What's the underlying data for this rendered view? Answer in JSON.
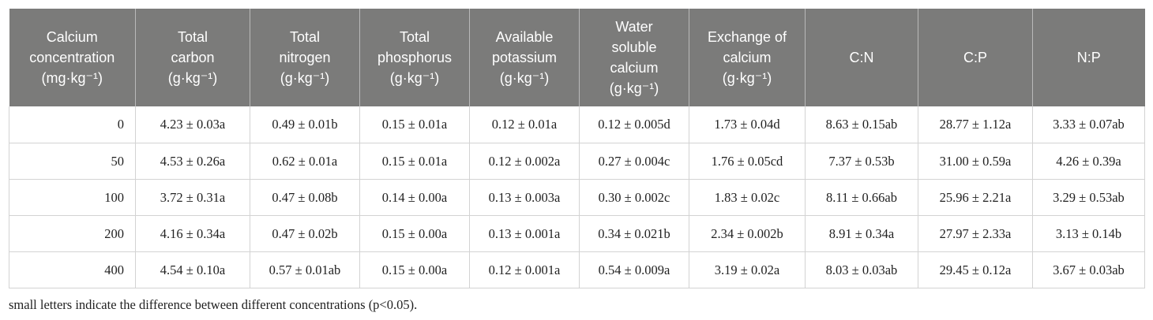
{
  "table": {
    "headers": [
      [
        "Calcium",
        "concentration",
        "(mg·kg⁻¹)"
      ],
      [
        "Total",
        "carbon",
        "(g·kg⁻¹)"
      ],
      [
        "Total",
        "nitrogen",
        "(g·kg⁻¹)"
      ],
      [
        "Total",
        "phosphorus",
        "(g·kg⁻¹)"
      ],
      [
        "Available",
        "potassium",
        "(g·kg⁻¹)"
      ],
      [
        "Water",
        "soluble",
        "calcium",
        "(g·kg⁻¹)"
      ],
      [
        "Exchange of",
        "calcium",
        "(g·kg⁻¹)"
      ],
      [
        "C:N"
      ],
      [
        "C:P"
      ],
      [
        "N:P"
      ]
    ],
    "rows": [
      [
        "0",
        "4.23 ± 0.03a",
        "0.49 ± 0.01b",
        "0.15 ± 0.01a",
        "0.12 ± 0.01a",
        "0.12 ± 0.005d",
        "1.73 ± 0.04d",
        "8.63 ± 0.15ab",
        "28.77 ± 1.12a",
        "3.33 ± 0.07ab"
      ],
      [
        "50",
        "4.53 ± 0.26a",
        "0.62 ± 0.01a",
        "0.15 ± 0.01a",
        "0.12 ± 0.002a",
        "0.27 ± 0.004c",
        "1.76 ± 0.05cd",
        "7.37 ± 0.53b",
        "31.00 ± 0.59a",
        "4.26 ± 0.39a"
      ],
      [
        "100",
        "3.72 ± 0.31a",
        "0.47 ± 0.08b",
        "0.14 ± 0.00a",
        "0.13 ± 0.003a",
        "0.30 ± 0.002c",
        "1.83 ± 0.02c",
        "8.11 ± 0.66ab",
        "25.96 ± 2.21a",
        "3.29 ± 0.53ab"
      ],
      [
        "200",
        "4.16 ± 0.34a",
        "0.47 ± 0.02b",
        "0.15 ± 0.00a",
        "0.13 ± 0.001a",
        "0.34 ± 0.021b",
        "2.34 ± 0.002b",
        "8.91 ± 0.34a",
        "27.97 ± 2.33a",
        "3.13 ± 0.14b"
      ],
      [
        "400",
        "4.54 ± 0.10a",
        "0.57 ± 0.01ab",
        "0.15 ± 0.00a",
        "0.12 ± 0.001a",
        "0.54 ± 0.009a",
        "3.19 ± 0.02a",
        "8.03 ± 0.03ab",
        "29.45 ± 0.12a",
        "3.67 ± 0.03ab"
      ]
    ]
  },
  "footnote": "small letters indicate the difference between different concentrations (p<0.05).",
  "colors": {
    "header_bg": "#7b7b7a",
    "header_text": "#ffffff",
    "grid": "#d3d3d3"
  }
}
